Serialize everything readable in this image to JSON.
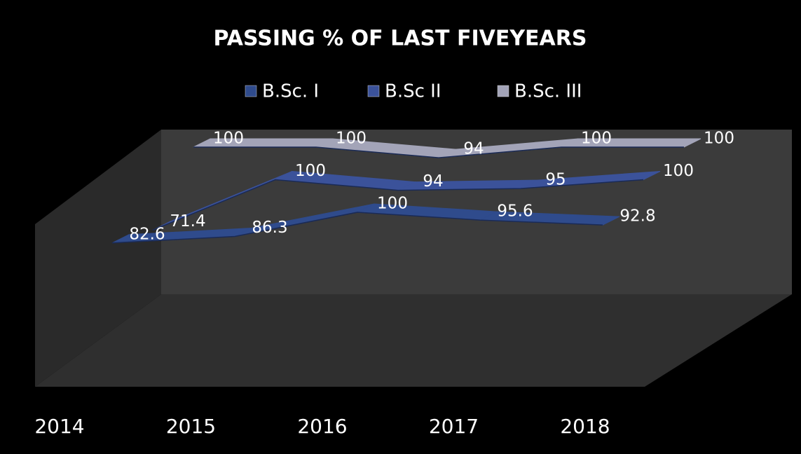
{
  "chart_data": {
    "type": "line",
    "title": "PASSING % OF LAST FIVEYEARS",
    "categories": [
      "2014",
      "2015",
      "2016",
      "2017",
      "2018"
    ],
    "series": [
      {
        "name": "B.Sc. I",
        "color": "#2f4b8c",
        "values": [
          82.6,
          86.3,
          100,
          95.6,
          92.8
        ]
      },
      {
        "name": "B.Sc II",
        "color": "#3b529a",
        "values": [
          71.4,
          100,
          94,
          95,
          100
        ]
      },
      {
        "name": "B.Sc. III",
        "color": "#a3a4b8",
        "values": [
          100,
          100,
          94,
          100,
          100
        ]
      }
    ],
    "legend": "top"
  }
}
